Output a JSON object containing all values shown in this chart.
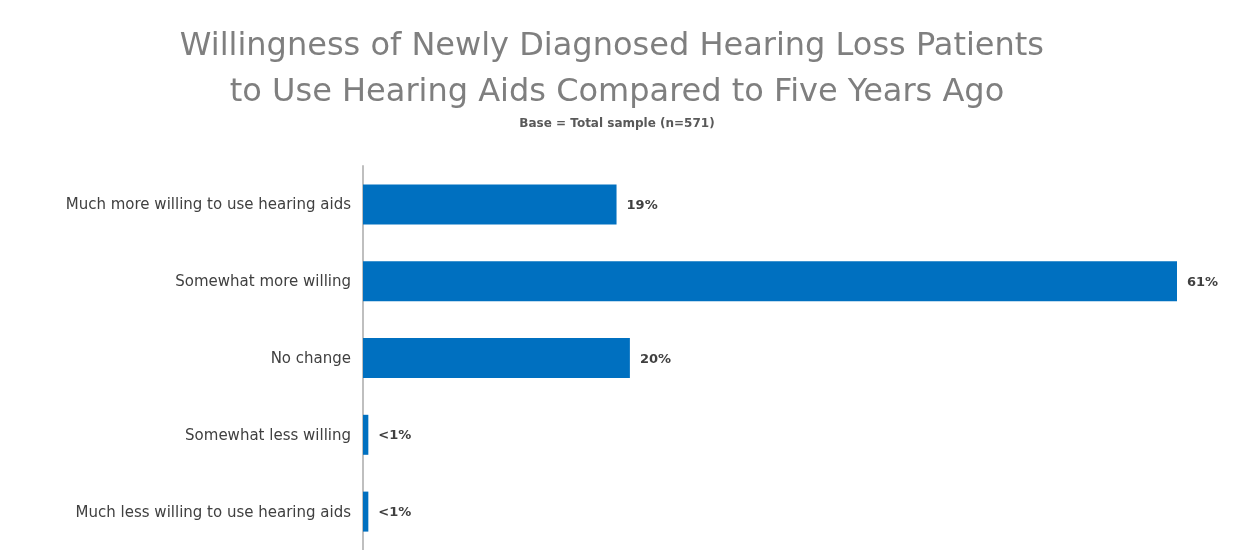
{
  "chart_data": {
    "type": "bar",
    "orientation": "horizontal",
    "title": "Willingness of Newly Diagnosed Hearing Loss Patients to Use Hearing Aids Compared to Five Years Ago",
    "subtitle": "Base = Total sample (n=571)",
    "categories": [
      "Much more willing to use hearing aids",
      "Somewhat more willing",
      "No change",
      "Somewhat less willing",
      "Much less willing to use hearing aids"
    ],
    "values": [
      19,
      61,
      20,
      0.4,
      0.4
    ],
    "value_labels": [
      "19%",
      "61%",
      "20%",
      "<1%",
      "<1%"
    ],
    "color": "#0070c0"
  }
}
